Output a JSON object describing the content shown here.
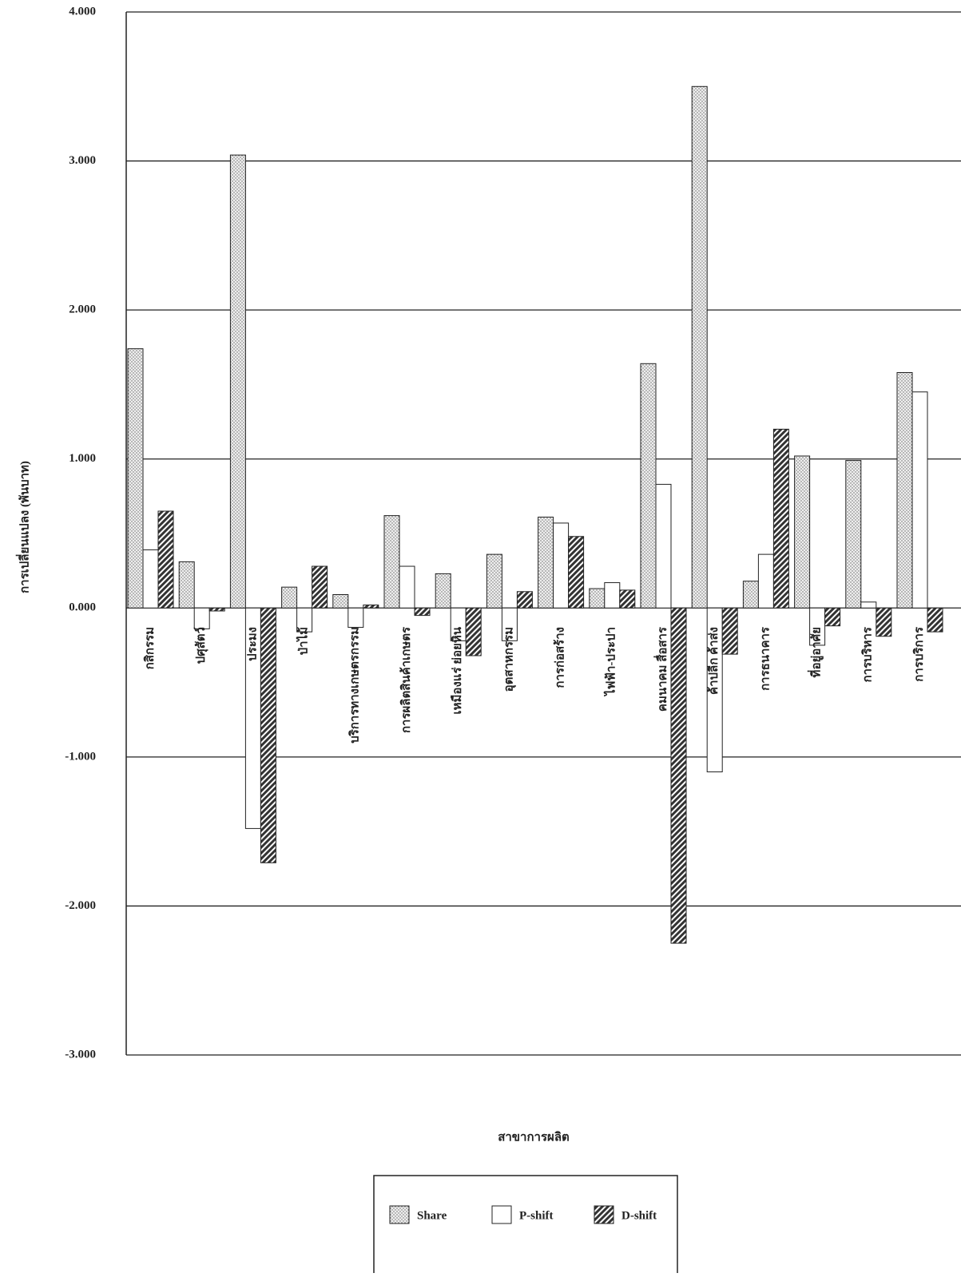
{
  "chart_data": {
    "type": "bar",
    "y_label": "การเปลี่ยนแปลง (พันบาท)",
    "x_label": "สาขาการผลิต",
    "categories": [
      "กสิกรรม",
      "ปศุสัตว์",
      "ประมง",
      "ป่าไม้",
      "บริการทางเกษตรกรรม",
      "การผลิตสินค้าเกษตร",
      "เหมืองแร่ ย่อยหิน",
      "อุตสาหกรรม",
      "การก่อสร้าง",
      "ไฟฟ้า-ประปา",
      "คมนาคม สื่อสาร",
      "ค้าปลีก ค้าส่ง",
      "การธนาคาร",
      "ที่อยู่อาศัย",
      "การบริหาร",
      "การบริการ"
    ],
    "series": [
      {
        "name": "Share",
        "color": "#d8d8d8",
        "pattern": "dots",
        "values": [
          1.74,
          0.31,
          3.04,
          0.14,
          0.09,
          0.62,
          0.23,
          0.36,
          0.61,
          0.13,
          1.64,
          3.5,
          0.18,
          1.02,
          0.99,
          1.58
        ]
      },
      {
        "name": "P-shift",
        "color": "#ffffff",
        "pattern": "none",
        "values": [
          0.39,
          -0.14,
          -1.48,
          -0.16,
          -0.13,
          0.28,
          -0.22,
          -0.22,
          0.57,
          0.17,
          0.83,
          -1.1,
          0.36,
          -0.25,
          0.04,
          1.45
        ]
      },
      {
        "name": "D-shift",
        "color": "#333333",
        "pattern": "hatch",
        "values": [
          0.65,
          -0.02,
          -1.71,
          0.28,
          0.02,
          -0.05,
          -0.32,
          0.11,
          0.48,
          0.12,
          -2.25,
          -0.31,
          1.2,
          -0.12,
          -0.19,
          -0.16
        ]
      }
    ],
    "ylim": [
      -3,
      4
    ],
    "yticks": [
      {
        "value": -3,
        "label": "-3.000"
      },
      {
        "value": -2,
        "label": "-2.000"
      },
      {
        "value": -1,
        "label": "-1.000"
      },
      {
        "value": 0,
        "label": "0.000"
      },
      {
        "value": 1,
        "label": "1.000"
      },
      {
        "value": 2,
        "label": "2.000"
      },
      {
        "value": 3,
        "label": "3.000"
      },
      {
        "value": 4,
        "label": "4.000"
      }
    ],
    "grid": true,
    "legend": "bottom"
  }
}
